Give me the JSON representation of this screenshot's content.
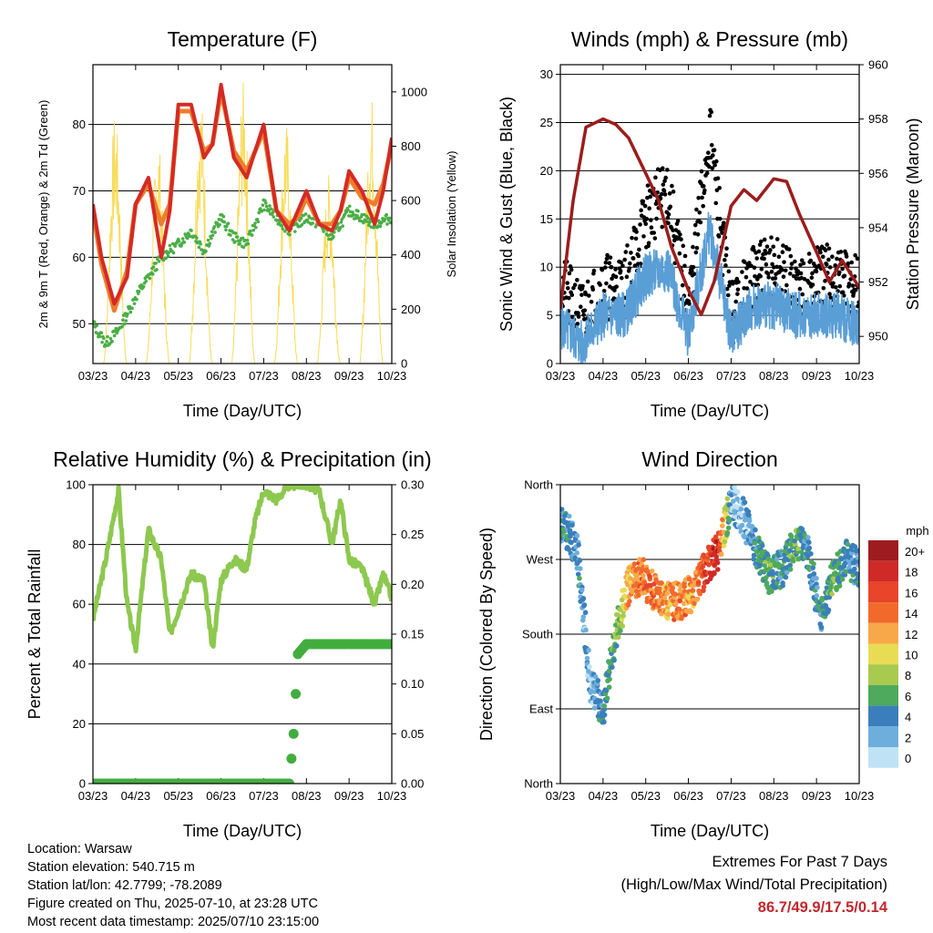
{
  "colors": {
    "temp_2m": "#ee7d2c",
    "temp_9m": "#d42a25",
    "dewpoint": "#4aae47",
    "solar": "#f8dc5a",
    "wind": "#5a9ed6",
    "gust": "#000000",
    "pressure": "#9b1d1d",
    "rh": "#8dc84f",
    "precip": "#42ad3f"
  },
  "chart_data": [
    {
      "id": "temperature",
      "type": "line",
      "title": "Temperature (F)",
      "xlabel": "Time (Day/UTC)",
      "ylabel": "2m & 9m T (Red, Orange) & 2m Td (Green)",
      "y2label": "Solar Insolation (Yellow)",
      "x_ticks": [
        "03/23",
        "04/23",
        "05/23",
        "06/23",
        "07/23",
        "08/23",
        "09/23",
        "10/23"
      ],
      "ylim": [
        44,
        89
      ],
      "y_ticks": [
        50,
        60,
        70,
        80
      ],
      "y2lim": [
        0,
        1100
      ],
      "y2_ticks": [
        0,
        200,
        400,
        600,
        800,
        1000
      ],
      "grid": "horizontal",
      "series": [
        {
          "key": "temp_9m",
          "axis": "left",
          "x": [
            0,
            0.2,
            0.5,
            0.8,
            1.0,
            1.3,
            1.6,
            1.8,
            2.0,
            2.3,
            2.6,
            2.8,
            3.0,
            3.3,
            3.6,
            3.8,
            4.0,
            4.3,
            4.6,
            4.8,
            5.0,
            5.3,
            5.6,
            5.8,
            6.0,
            6.3,
            6.6,
            6.8,
            7.0
          ],
          "values": [
            68,
            60,
            53,
            57,
            68,
            72,
            60,
            67,
            83,
            83,
            75,
            77,
            86,
            75,
            72,
            76,
            80,
            67,
            64,
            67,
            70,
            65,
            64,
            67,
            73,
            70,
            65,
            70,
            78
          ]
        },
        {
          "key": "temp_2m",
          "axis": "left",
          "x": [
            0,
            0.2,
            0.5,
            0.8,
            1.0,
            1.3,
            1.6,
            1.8,
            2.0,
            2.3,
            2.6,
            2.8,
            3.0,
            3.3,
            3.6,
            3.8,
            4.0,
            4.3,
            4.6,
            4.8,
            5.0,
            5.3,
            5.6,
            5.8,
            6.0,
            6.3,
            6.6,
            6.8,
            7.0
          ],
          "values": [
            67,
            59,
            52,
            58,
            68,
            71,
            65,
            68,
            82,
            82,
            76,
            77,
            85,
            76,
            73,
            76,
            79,
            67,
            65,
            66,
            69,
            65,
            65,
            67,
            72,
            69,
            68,
            71,
            77
          ]
        },
        {
          "key": "dewpoint",
          "axis": "left",
          "x": [
            0,
            0.3,
            0.6,
            1.0,
            1.3,
            1.6,
            2.0,
            2.3,
            2.6,
            3.0,
            3.3,
            3.6,
            4.0,
            4.3,
            4.6,
            5.0,
            5.3,
            5.6,
            6.0,
            6.3,
            6.6,
            7.0
          ],
          "values": [
            50,
            47,
            49,
            54,
            57,
            60,
            62,
            64,
            61,
            66,
            63,
            62,
            68,
            66,
            64,
            66,
            65,
            63,
            67,
            66,
            65,
            66
          ]
        },
        {
          "key": "solar",
          "axis": "right",
          "peaks_x": [
            0.52,
            1.52,
            2.52,
            3.52,
            4.52,
            5.52,
            6.52
          ],
          "peaks": [
            920,
            850,
            1000,
            1040,
            900,
            700,
            1000
          ]
        }
      ]
    },
    {
      "id": "wind_pressure",
      "type": "scatter",
      "title": "Winds (mph) & Pressure (mb)",
      "xlabel": "Time (Day/UTC)",
      "ylabel": "Sonic Wind & Gust (Blue, Black)",
      "y2label": "Station Pressure (Maroon)",
      "x_ticks": [
        "03/23",
        "04/23",
        "05/23",
        "06/23",
        "07/23",
        "08/23",
        "09/23",
        "10/23"
      ],
      "ylim": [
        0,
        31
      ],
      "y_ticks": [
        0,
        5,
        10,
        15,
        20,
        25,
        30
      ],
      "y2lim": [
        949.0,
        960.0
      ],
      "y2_ticks": [
        950,
        952,
        954,
        956,
        958,
        960
      ],
      "grid": "horizontal",
      "series": [
        {
          "key": "wind",
          "x": [
            0,
            0.5,
            1.0,
            1.5,
            2.0,
            2.5,
            3.0,
            3.5,
            4.0,
            4.5,
            5.0,
            5.5,
            6.0,
            6.5,
            7.0
          ],
          "values": [
            4,
            2,
            5,
            5,
            9,
            10,
            3,
            14,
            3,
            6,
            6,
            5,
            5,
            5,
            4
          ]
        },
        {
          "key": "gust",
          "x": [
            0,
            0.5,
            1.0,
            1.5,
            2.0,
            2.5,
            3.0,
            3.5,
            4.0,
            4.5,
            5.0,
            5.5,
            6.0,
            6.5,
            7.0
          ],
          "values": [
            8,
            5,
            8,
            8,
            15,
            18,
            6,
            24,
            5,
            9,
            10,
            8,
            9,
            9,
            8
          ]
        },
        {
          "key": "pressure",
          "x": [
            0,
            0.3,
            0.6,
            1.0,
            1.3,
            1.6,
            2.0,
            2.3,
            2.6,
            3.0,
            3.3,
            3.6,
            4.0,
            4.3,
            4.6,
            5.0,
            5.3,
            5.6,
            6.0,
            6.3,
            6.6,
            7.0
          ],
          "values": [
            951,
            955,
            957.7,
            958,
            957.8,
            957.3,
            956,
            955,
            953.3,
            951.7,
            950.8,
            952,
            954.8,
            955.4,
            955,
            955.8,
            955.7,
            954.5,
            953.1,
            952.0,
            952.8,
            951.8
          ]
        }
      ]
    },
    {
      "id": "humidity_precip",
      "type": "line",
      "title": "Relative Humidity (%) & Precipitation (in)",
      "xlabel": "Time (Day/UTC)",
      "ylabel": "Percent & Total Rainfall",
      "x_ticks": [
        "03/23",
        "04/23",
        "05/23",
        "06/23",
        "07/23",
        "08/23",
        "09/23",
        "10/23"
      ],
      "ylim": [
        0,
        100
      ],
      "y_ticks": [
        0,
        20,
        40,
        60,
        80,
        100
      ],
      "y2lim": [
        0,
        0.3
      ],
      "y2_ticks": [
        "0.00",
        "0.05",
        "0.10",
        "0.15",
        "0.20",
        "0.25",
        "0.30"
      ],
      "grid": "horizontal",
      "series": [
        {
          "key": "rh",
          "x": [
            0,
            0.3,
            0.6,
            0.8,
            1.0,
            1.3,
            1.6,
            1.8,
            2.0,
            2.3,
            2.6,
            2.8,
            3.0,
            3.3,
            3.6,
            3.8,
            4.0,
            4.3,
            4.6,
            5.0,
            5.3,
            5.6,
            5.8,
            6.0,
            6.3,
            6.6,
            6.8,
            7.0
          ],
          "values": [
            55,
            75,
            98,
            60,
            45,
            85,
            75,
            50,
            58,
            70,
            68,
            45,
            68,
            75,
            72,
            88,
            98,
            95,
            100,
            100,
            98,
            80,
            95,
            75,
            72,
            60,
            70,
            62
          ]
        },
        {
          "key": "precip",
          "x": [
            0,
            4.6,
            4.7,
            4.8,
            5.0,
            7.0
          ],
          "values": [
            0,
            0,
            0.05,
            0.13,
            0.14,
            0.14
          ]
        }
      ]
    },
    {
      "id": "wind_direction",
      "type": "scatter",
      "title": "Wind Direction",
      "xlabel": "Time (Day/UTC)",
      "ylabel": "Direction (Colored By Speed)",
      "x_ticks": [
        "03/23",
        "04/23",
        "05/23",
        "06/23",
        "07/23",
        "08/23",
        "09/23",
        "10/23"
      ],
      "y_ticks": [
        "North",
        "East",
        "South",
        "West",
        "North"
      ],
      "ylim": [
        0,
        360
      ],
      "grid": "horizontal",
      "legend_title": "mph",
      "legend_labels": [
        "20+",
        "18",
        "16",
        "14",
        "12",
        "10",
        "8",
        "6",
        "4",
        "2",
        "0"
      ],
      "legend_colors": [
        "#9d1c1f",
        "#cf2a27",
        "#e8452a",
        "#f16a2b",
        "#f9a849",
        "#e8dc55",
        "#a8ca4f",
        "#4eaa5c",
        "#3a7fbc",
        "#6eaedd",
        "#bfe2f4"
      ],
      "series": [
        {
          "key": "direction",
          "x": [
            0.1,
            0.4,
            0.7,
            1.0,
            1.3,
            1.6,
            1.9,
            2.2,
            2.5,
            2.8,
            3.1,
            3.4,
            3.7,
            4.0,
            4.3,
            4.6,
            4.9,
            5.2,
            5.5,
            5.8,
            6.1,
            6.4,
            6.7,
            7.0
          ],
          "values": [
            310,
            280,
            120,
            90,
            180,
            240,
            250,
            230,
            220,
            220,
            230,
            260,
            280,
            340,
            320,
            280,
            250,
            260,
            290,
            280,
            200,
            250,
            270,
            260
          ],
          "speeds": [
            4,
            4,
            2,
            4,
            6,
            12,
            14,
            14,
            12,
            14,
            12,
            16,
            18,
            2,
            2,
            4,
            6,
            4,
            6,
            4,
            4,
            6,
            4,
            4
          ]
        }
      ]
    }
  ],
  "info": {
    "location": "Location: Warsaw",
    "elevation": "Station elevation: 540.715 m",
    "latlon": "Station lat/lon: 42.7799; -78.2089",
    "created": "Figure created on Thu, 2025-07-10, at 23:28 UTC",
    "latest": "Most recent data timestamp: 2025/07/10 23:15:00"
  },
  "extremes": {
    "heading": "Extremes For Past 7 Days",
    "subheading": "(High/Low/Max Wind/Total Precipitation)",
    "values": "86.7/49.9/17.5/0.14"
  }
}
